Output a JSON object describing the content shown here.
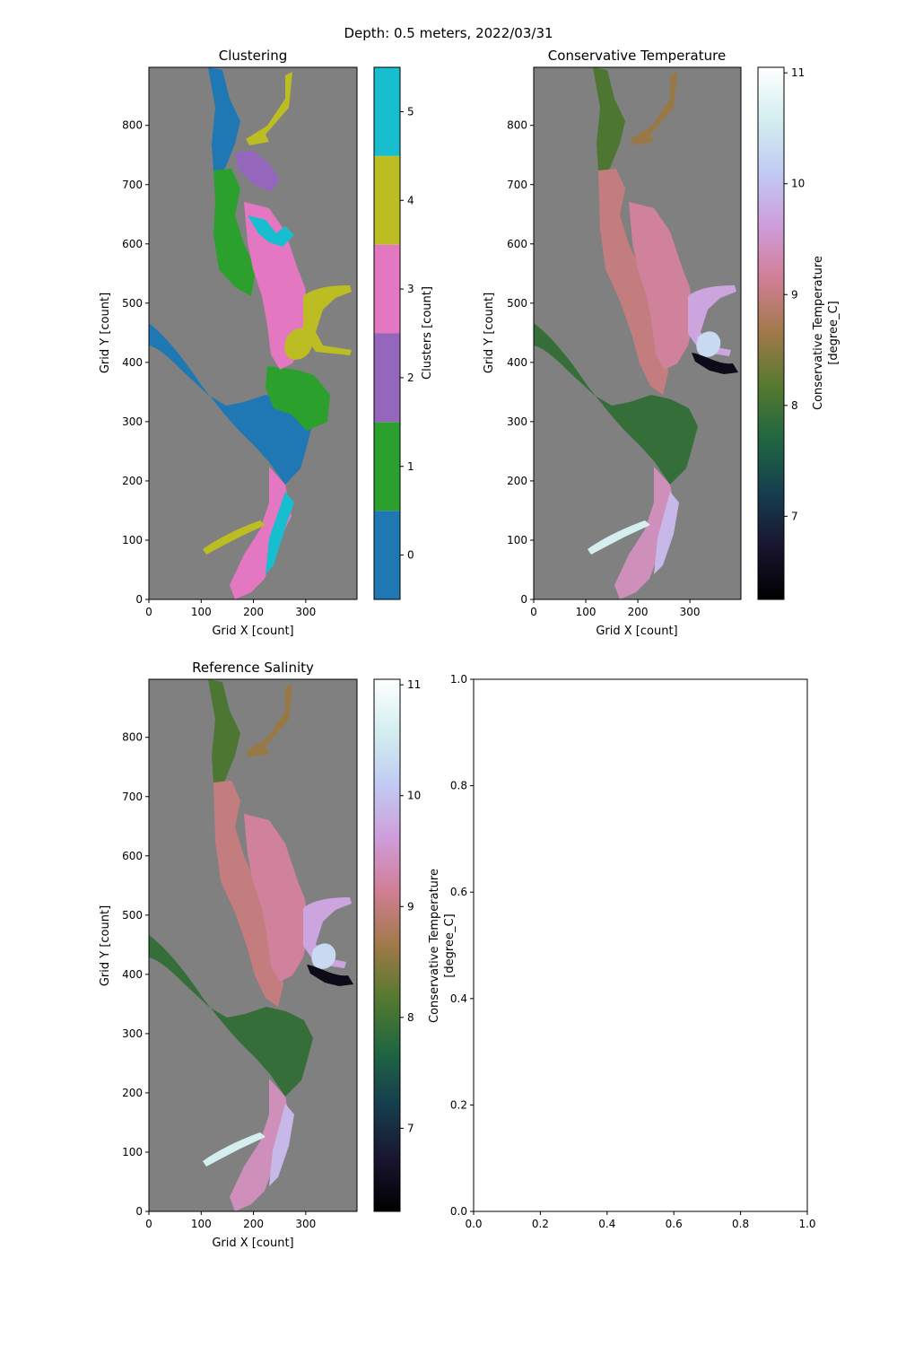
{
  "suptitle": "Depth: 0.5 meters, 2022/03/31",
  "colors": {
    "land": "#808080",
    "tab10_clusters": [
      "#1f77b4",
      "#2ca02c",
      "#9467bd",
      "#e377c2",
      "#bcbd22",
      "#17becf"
    ],
    "cubehelix_stops": [
      "#000000",
      "#1a1530",
      "#163d4e",
      "#1f6642",
      "#54792f",
      "#a07949",
      "#d07e93",
      "#cf9cda",
      "#c1caf3",
      "#d2eeef",
      "#ffffff"
    ]
  },
  "chart_data": [
    {
      "type": "heatmap",
      "title": "Clustering",
      "xlabel": "Grid X [count]",
      "ylabel": "Grid Y [count]",
      "xlim": [
        0,
        398
      ],
      "ylim": [
        0,
        898
      ],
      "xticks": [
        0,
        100,
        200,
        300
      ],
      "yticks": [
        0,
        100,
        200,
        300,
        400,
        500,
        600,
        700,
        800
      ],
      "colorbar": {
        "label": "Clusters [count]",
        "kind": "discrete",
        "range": [
          -0.5,
          5.5
        ],
        "ticks": [
          0,
          1,
          2,
          3,
          4,
          5
        ]
      }
    },
    {
      "type": "heatmap",
      "title": "Conservative Temperature",
      "xlabel": "Grid X [count]",
      "ylabel": "Grid Y [count]",
      "xlim": [
        0,
        398
      ],
      "ylim": [
        0,
        898
      ],
      "xticks": [
        0,
        100,
        200,
        300
      ],
      "yticks": [
        0,
        100,
        200,
        300,
        400,
        500,
        600,
        700,
        800
      ],
      "colorbar": {
        "label_lines": [
          "Conservative Temperature",
          "[degree_C]"
        ],
        "kind": "continuous",
        "range": [
          6.25,
          11.05
        ],
        "ticks": [
          7,
          8,
          9,
          10,
          11
        ]
      }
    },
    {
      "type": "heatmap",
      "title": "Reference Salinity",
      "xlabel": "Grid X [count]",
      "ylabel": "Grid Y [count]",
      "xlim": [
        0,
        398
      ],
      "ylim": [
        0,
        898
      ],
      "xticks": [
        0,
        100,
        200,
        300
      ],
      "yticks": [
        0,
        100,
        200,
        300,
        400,
        500,
        600,
        700,
        800
      ],
      "colorbar": {
        "label_lines": [
          "Conservative Temperature",
          "[degree_C]"
        ],
        "kind": "continuous",
        "range": [
          6.25,
          11.05
        ],
        "ticks": [
          7,
          8,
          9,
          10,
          11
        ]
      }
    },
    {
      "type": "line",
      "title": "",
      "xlabel": "",
      "ylabel": "",
      "xlim": [
        0.0,
        1.0
      ],
      "ylim": [
        0.0,
        1.0
      ],
      "xticks": [
        "0.0",
        "0.2",
        "0.4",
        "0.6",
        "0.8",
        "1.0"
      ],
      "yticks": [
        "0.0",
        "0.2",
        "0.4",
        "0.6",
        "0.8",
        "1.0"
      ],
      "series": []
    }
  ]
}
